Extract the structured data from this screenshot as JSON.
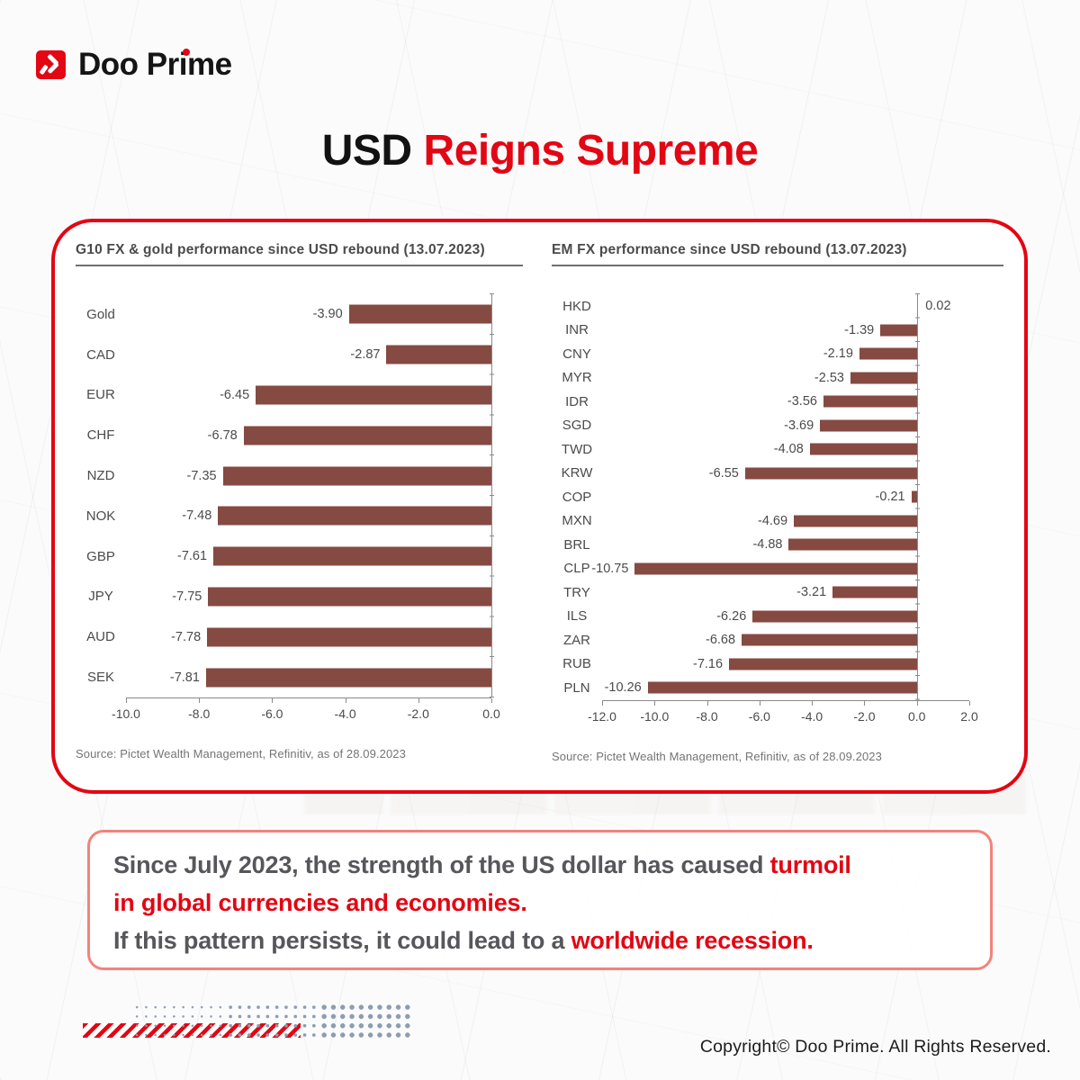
{
  "brand": {
    "logo_text": "Doo Prime"
  },
  "title": {
    "black": "USD",
    "red": "Reigns Supreme"
  },
  "chart_data": [
    {
      "type": "bar",
      "orientation": "horizontal",
      "title": "G10 FX & gold performance since USD rebound (13.07.2023)",
      "categories": [
        "Gold",
        "CAD",
        "EUR",
        "CHF",
        "NZD",
        "NOK",
        "GBP",
        "JPY",
        "AUD",
        "SEK"
      ],
      "values": [
        -3.9,
        -2.87,
        -6.45,
        -6.78,
        -7.35,
        -7.48,
        -7.61,
        -7.75,
        -7.78,
        -7.81
      ],
      "value_labels": [
        "-3.90",
        "-2.87",
        "-6.45",
        "-6.78",
        "-7.35",
        "-7.48",
        "-7.61",
        "-7.75",
        "-7.78",
        "-7.81"
      ],
      "xlim": [
        -10,
        0
      ],
      "tick_labels": [
        "-10.0",
        "-8.0",
        "-6.0",
        "-4.0",
        "-2.0",
        "0.0"
      ],
      "grid": false,
      "bar_color": "#854a42",
      "source": "Source: Pictet Wealth Management, Refinitiv, as of 28.09.2023"
    },
    {
      "type": "bar",
      "orientation": "horizontal",
      "title": "EM FX performance since USD rebound (13.07.2023)",
      "categories": [
        "HKD",
        "INR",
        "CNY",
        "MYR",
        "IDR",
        "SGD",
        "TWD",
        "KRW",
        "COP",
        "MXN",
        "BRL",
        "CLP",
        "TRY",
        "ILS",
        "ZAR",
        "RUB",
        "PLN"
      ],
      "values": [
        0.02,
        -1.39,
        -2.19,
        -2.53,
        -3.56,
        -3.69,
        -4.08,
        -6.55,
        -0.21,
        -4.69,
        -4.88,
        -10.75,
        -3.21,
        -6.26,
        -6.68,
        -7.16,
        -10.26
      ],
      "value_labels": [
        "0.02",
        "-1.39",
        "-2.19",
        "-2.53",
        "-3.56",
        "-3.69",
        "-4.08",
        "-6.55",
        "-0.21",
        "-4.69",
        "-4.88",
        "-10.75",
        "-3.21",
        "-6.26",
        "-6.68",
        "-7.16",
        "-10.26"
      ],
      "xlim": [
        -12,
        2
      ],
      "tick_labels": [
        "-12.0",
        "-10.0",
        "-8.0",
        "-6.0",
        "-4.0",
        "-2.0",
        "0.0",
        "2.0"
      ],
      "grid": false,
      "bar_color": "#854a42",
      "source": "Source: Pictet Wealth Management, Refinitiv, as of 28.09.2023"
    }
  ],
  "callout": {
    "line1_gray": "Since July 2023, the strength of the US dollar has caused ",
    "line1_red": "turmoil",
    "line2_red": "in global currencies and economies.",
    "line3_gray": "If this pattern persists, it could lead to a ",
    "line3_red": "worldwide recession."
  },
  "footer": {
    "copyright": "Copyright© Doo Prime. All Rights Reserved."
  },
  "colors": {
    "brand_red": "#e30613",
    "bar": "#854a42",
    "callout_border": "#f2837b",
    "text_gray": "#57575b"
  }
}
